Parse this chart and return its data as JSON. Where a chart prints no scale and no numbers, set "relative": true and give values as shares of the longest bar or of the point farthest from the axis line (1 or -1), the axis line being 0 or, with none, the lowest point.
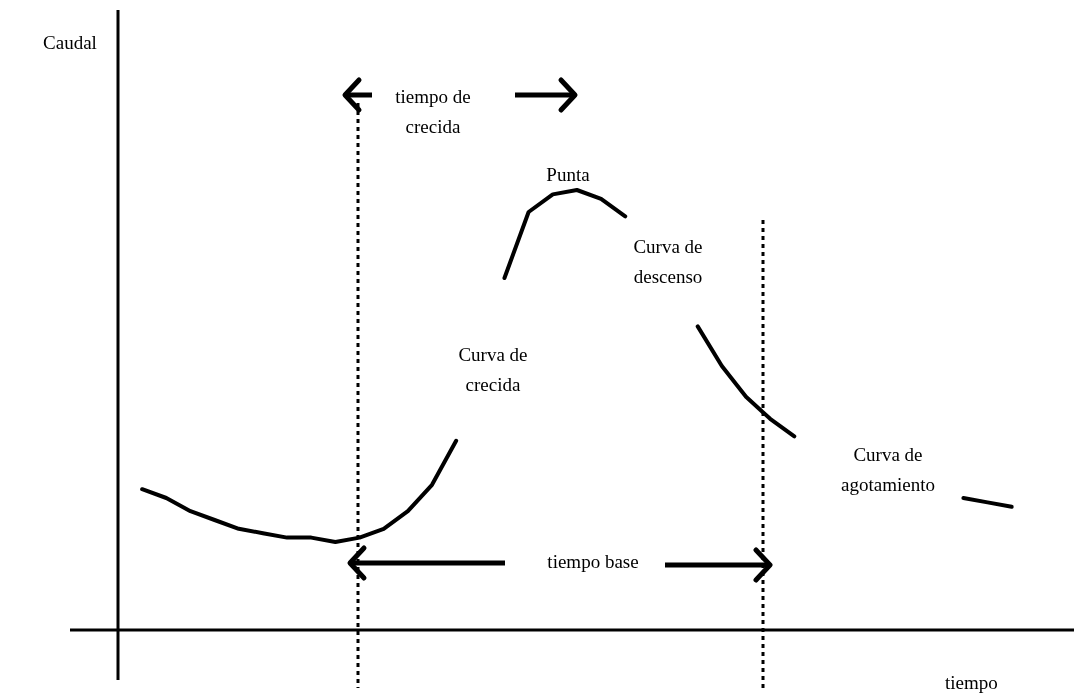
{
  "chart_data": {
    "type": "line",
    "relative": true,
    "xlabel": "tiempo",
    "categories": [
      null,
      null,
      null,
      null,
      null,
      null,
      null,
      null,
      null,
      null,
      null,
      null,
      null,
      null,
      null,
      null,
      null,
      null,
      null,
      null,
      null,
      null,
      null,
      null,
      null,
      null,
      null,
      null,
      null,
      null,
      null,
      null,
      null,
      null,
      null,
      null,
      null,
      null,
      null,
      null
    ],
    "series": [
      {
        "color": "#000000",
        "values": [
          null,
          0.32,
          0.3,
          0.27,
          0.25,
          0.23,
          0.22,
          0.21,
          0.21,
          0.2,
          0.21,
          0.23,
          0.27,
          0.33,
          0.43,
          null,
          null,
          null,
          null,
          null,
          null,
          null,
          null,
          null,
          null,
          null,
          null,
          null,
          null,
          null,
          null,
          null,
          null,
          null,
          null,
          null,
          null,
          null,
          null,
          null
        ]
      },
      {
        "color": "#000000",
        "values": [
          null,
          null,
          null,
          null,
          null,
          null,
          null,
          null,
          null,
          null,
          null,
          null,
          null,
          null,
          null,
          null,
          0.8,
          0.95,
          0.99,
          1,
          0.98,
          0.94,
          null,
          null,
          null,
          null,
          null,
          null,
          null,
          null,
          null,
          null,
          null,
          null,
          null,
          null,
          null,
          null,
          null,
          null
        ]
      },
      {
        "color": "#000000",
        "values": [
          null,
          null,
          null,
          null,
          null,
          null,
          null,
          null,
          null,
          null,
          null,
          null,
          null,
          null,
          null,
          null,
          null,
          null,
          null,
          null,
          null,
          null,
          null,
          null,
          0.69,
          0.6,
          0.53,
          0.48,
          0.44,
          null,
          null,
          null,
          null,
          null,
          null,
          null,
          null,
          null,
          null,
          null
        ]
      },
      {
        "color": "#000000",
        "values": [
          null,
          null,
          null,
          null,
          null,
          null,
          null,
          null,
          null,
          null,
          null,
          null,
          null,
          null,
          null,
          null,
          null,
          null,
          null,
          null,
          null,
          null,
          null,
          null,
          null,
          null,
          null,
          null,
          null,
          null,
          null,
          null,
          null,
          null,
          null,
          0.3,
          0.29,
          0.28,
          null,
          null
        ]
      }
    ],
    "annotations": [
      "tiempo de crecida",
      "Punta",
      "Curva de descenso",
      "Curva de crecida",
      "Curva de agotamiento",
      "tiempo base",
      "Caudal"
    ],
    "grid": false,
    "marker": "none",
    "line_style": "solid"
  }
}
